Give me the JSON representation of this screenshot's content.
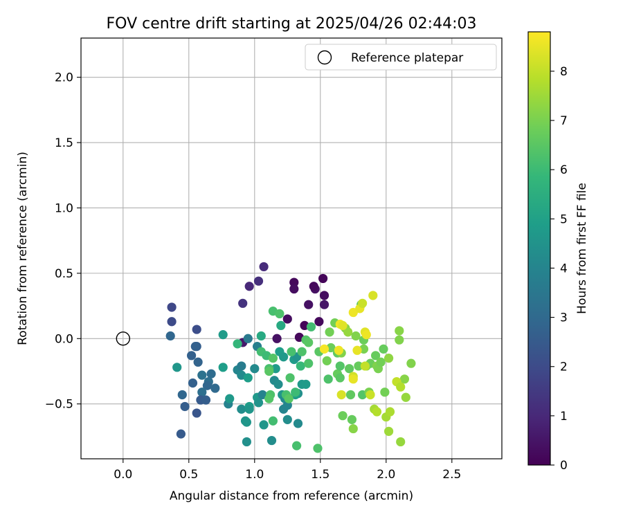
{
  "chart_data": {
    "type": "scatter",
    "title": "FOV centre drift starting at 2025/04/26 02:44:03",
    "xlabel": "Angular distance from reference (arcmin)",
    "ylabel": "Rotation from reference (arcmin)",
    "xlim": [
      -0.32,
      2.88
    ],
    "ylim": [
      -0.92,
      2.3
    ],
    "x_ticks": [
      0.0,
      0.5,
      1.0,
      1.5,
      2.0,
      2.5
    ],
    "x_tick_labels": [
      "0.0",
      "0.5",
      "1.0",
      "1.5",
      "2.0",
      "2.5"
    ],
    "y_ticks": [
      -0.5,
      0.0,
      0.5,
      1.0,
      1.5,
      2.0
    ],
    "y_tick_labels": [
      "−0.5",
      "0.0",
      "0.5",
      "1.0",
      "1.5",
      "2.0"
    ],
    "grid": true,
    "legend": {
      "placement": "top-right",
      "entries": [
        {
          "label": "Reference platepar",
          "marker": "open-circle",
          "color": "#000000"
        }
      ]
    },
    "reference_point": {
      "x": 0.0,
      "y": 0.0
    },
    "colorbar": {
      "label": "Hours from first FF file",
      "colormap": "viridis",
      "range": [
        0,
        8.8
      ],
      "ticks": [
        0,
        1,
        2,
        3,
        4,
        5,
        6,
        7,
        8
      ],
      "tick_labels": [
        "0",
        "1",
        "2",
        "3",
        "4",
        "5",
        "6",
        "7",
        "8"
      ]
    },
    "points": [
      {
        "x": 1.3,
        "y": 0.43,
        "c": 0.2
      },
      {
        "x": 1.52,
        "y": 0.46,
        "c": 0.1
      },
      {
        "x": 1.53,
        "y": 0.33,
        "c": 0.3
      },
      {
        "x": 1.46,
        "y": 0.38,
        "c": 0.4
      },
      {
        "x": 1.45,
        "y": 0.4,
        "c": 0.2
      },
      {
        "x": 1.3,
        "y": 0.38,
        "c": 0.3
      },
      {
        "x": 1.41,
        "y": 0.26,
        "c": 0.4
      },
      {
        "x": 1.53,
        "y": 0.26,
        "c": 0.5
      },
      {
        "x": 1.25,
        "y": 0.15,
        "c": 0.3
      },
      {
        "x": 1.49,
        "y": 0.13,
        "c": 0.2
      },
      {
        "x": 1.38,
        "y": 0.1,
        "c": 0.1
      },
      {
        "x": 1.34,
        "y": 0.01,
        "c": 0.2
      },
      {
        "x": 1.17,
        "y": 0.0,
        "c": 0.4
      },
      {
        "x": 0.91,
        "y": -0.03,
        "c": 0.6
      },
      {
        "x": 1.07,
        "y": 0.55,
        "c": 1.1
      },
      {
        "x": 1.03,
        "y": 0.44,
        "c": 1.2
      },
      {
        "x": 0.96,
        "y": 0.4,
        "c": 1.0
      },
      {
        "x": 0.91,
        "y": 0.27,
        "c": 1.3
      },
      {
        "x": 0.37,
        "y": 0.24,
        "c": 1.9
      },
      {
        "x": 0.37,
        "y": 0.13,
        "c": 2.0
      },
      {
        "x": 0.36,
        "y": 0.02,
        "c": 2.9
      },
      {
        "x": 0.56,
        "y": 0.07,
        "c": 2.1
      },
      {
        "x": 0.56,
        "y": -0.06,
        "c": 2.6
      },
      {
        "x": 0.55,
        "y": -0.06,
        "c": 2.7
      },
      {
        "x": 0.52,
        "y": -0.13,
        "c": 2.7
      },
      {
        "x": 0.57,
        "y": -0.18,
        "c": 2.8
      },
      {
        "x": 0.41,
        "y": -0.22,
        "c": 4.6
      },
      {
        "x": 0.6,
        "y": -0.28,
        "c": 3.3
      },
      {
        "x": 0.67,
        "y": -0.27,
        "c": 3.1
      },
      {
        "x": 0.53,
        "y": -0.34,
        "c": 2.7
      },
      {
        "x": 0.65,
        "y": -0.33,
        "c": 3.2
      },
      {
        "x": 0.64,
        "y": -0.36,
        "c": 2.9
      },
      {
        "x": 0.6,
        "y": -0.41,
        "c": 3.2
      },
      {
        "x": 0.7,
        "y": -0.38,
        "c": 3.0
      },
      {
        "x": 0.45,
        "y": -0.43,
        "c": 2.9
      },
      {
        "x": 0.59,
        "y": -0.47,
        "c": 2.5
      },
      {
        "x": 0.63,
        "y": -0.47,
        "c": 2.6
      },
      {
        "x": 0.47,
        "y": -0.52,
        "c": 2.6
      },
      {
        "x": 0.56,
        "y": -0.57,
        "c": 2.3
      },
      {
        "x": 0.44,
        "y": -0.73,
        "c": 2.5
      },
      {
        "x": 0.76,
        "y": 0.03,
        "c": 4.8
      },
      {
        "x": 0.87,
        "y": -0.04,
        "c": 5.8
      },
      {
        "x": 0.95,
        "y": 0.0,
        "c": 3.6
      },
      {
        "x": 1.02,
        "y": -0.06,
        "c": 3.8
      },
      {
        "x": 1.05,
        "y": 0.02,
        "c": 5.3
      },
      {
        "x": 0.76,
        "y": -0.22,
        "c": 4.9
      },
      {
        "x": 0.87,
        "y": -0.24,
        "c": 4.0
      },
      {
        "x": 0.9,
        "y": -0.21,
        "c": 3.7
      },
      {
        "x": 0.9,
        "y": -0.28,
        "c": 4.2
      },
      {
        "x": 0.95,
        "y": -0.3,
        "c": 4.9
      },
      {
        "x": 1.0,
        "y": -0.23,
        "c": 4.2
      },
      {
        "x": 0.8,
        "y": -0.5,
        "c": 3.9
      },
      {
        "x": 0.81,
        "y": -0.46,
        "c": 4.7
      },
      {
        "x": 0.9,
        "y": -0.54,
        "c": 4.3
      },
      {
        "x": 0.96,
        "y": -0.52,
        "c": 4.9
      },
      {
        "x": 0.96,
        "y": -0.54,
        "c": 4.6
      },
      {
        "x": 0.93,
        "y": -0.63,
        "c": 4.5
      },
      {
        "x": 0.94,
        "y": -0.64,
        "c": 4.6
      },
      {
        "x": 1.02,
        "y": -0.45,
        "c": 4.7
      },
      {
        "x": 1.03,
        "y": -0.49,
        "c": 4.5
      },
      {
        "x": 1.06,
        "y": -0.43,
        "c": 3.9
      },
      {
        "x": 1.07,
        "y": -0.66,
        "c": 4.6
      },
      {
        "x": 0.94,
        "y": -0.79,
        "c": 4.4
      },
      {
        "x": 1.13,
        "y": -0.78,
        "c": 4.3
      },
      {
        "x": 1.15,
        "y": -0.32,
        "c": 4.2
      },
      {
        "x": 1.18,
        "y": -0.35,
        "c": 4.3
      },
      {
        "x": 1.21,
        "y": -0.43,
        "c": 4.6
      },
      {
        "x": 1.23,
        "y": -0.46,
        "c": 4.2
      },
      {
        "x": 1.22,
        "y": -0.54,
        "c": 4.0
      },
      {
        "x": 1.25,
        "y": -0.51,
        "c": 4.0
      },
      {
        "x": 1.25,
        "y": -0.62,
        "c": 4.3
      },
      {
        "x": 1.33,
        "y": -0.42,
        "c": 4.4
      },
      {
        "x": 1.33,
        "y": -0.65,
        "c": 4.2
      },
      {
        "x": 1.36,
        "y": -0.35,
        "c": 4.7
      },
      {
        "x": 1.39,
        "y": -0.35,
        "c": 4.8
      },
      {
        "x": 1.31,
        "y": -0.43,
        "c": 4.9
      },
      {
        "x": 1.16,
        "y": -0.23,
        "c": 4.8
      },
      {
        "x": 1.19,
        "y": -0.1,
        "c": 4.9
      },
      {
        "x": 1.22,
        "y": -0.14,
        "c": 4.7
      },
      {
        "x": 1.3,
        "y": -0.16,
        "c": 4.8
      },
      {
        "x": 1.32,
        "y": -0.14,
        "c": 4.5
      },
      {
        "x": 1.2,
        "y": 0.1,
        "c": 5.3
      },
      {
        "x": 1.14,
        "y": 0.21,
        "c": 6.2
      },
      {
        "x": 1.19,
        "y": 0.19,
        "c": 6.3
      },
      {
        "x": 1.05,
        "y": -0.1,
        "c": 6.1
      },
      {
        "x": 1.09,
        "y": -0.13,
        "c": 6.0
      },
      {
        "x": 1.11,
        "y": -0.23,
        "c": 6.2
      },
      {
        "x": 1.11,
        "y": -0.25,
        "c": 6.5
      },
      {
        "x": 1.14,
        "y": -0.15,
        "c": 6.4
      },
      {
        "x": 1.12,
        "y": -0.43,
        "c": 6.3
      },
      {
        "x": 1.11,
        "y": -0.46,
        "c": 6.4
      },
      {
        "x": 1.14,
        "y": -0.63,
        "c": 6.1
      },
      {
        "x": 1.24,
        "y": -0.43,
        "c": 6.2
      },
      {
        "x": 1.26,
        "y": -0.46,
        "c": 6.5
      },
      {
        "x": 1.27,
        "y": -0.3,
        "c": 6.3
      },
      {
        "x": 1.28,
        "y": -0.1,
        "c": 6.2
      },
      {
        "x": 1.31,
        "y": -0.41,
        "c": 6.0
      },
      {
        "x": 1.32,
        "y": -0.82,
        "c": 6.2
      },
      {
        "x": 1.35,
        "y": -0.21,
        "c": 5.9
      },
      {
        "x": 1.36,
        "y": -0.1,
        "c": 6.3
      },
      {
        "x": 1.39,
        "y": -0.01,
        "c": 6.4
      },
      {
        "x": 1.41,
        "y": -0.03,
        "c": 6.5
      },
      {
        "x": 1.41,
        "y": -0.19,
        "c": 6.3
      },
      {
        "x": 1.43,
        "y": 0.09,
        "c": 6.1
      },
      {
        "x": 1.48,
        "y": -0.84,
        "c": 6.3
      },
      {
        "x": 1.49,
        "y": -0.1,
        "c": 6.5
      },
      {
        "x": 1.55,
        "y": -0.17,
        "c": 6.9
      },
      {
        "x": 1.56,
        "y": -0.31,
        "c": 6.3
      },
      {
        "x": 1.57,
        "y": 0.05,
        "c": 6.9
      },
      {
        "x": 1.61,
        "y": 0.12,
        "c": 6.9
      },
      {
        "x": 1.58,
        "y": -0.07,
        "c": 6.8
      },
      {
        "x": 1.63,
        "y": -0.11,
        "c": 6.6
      },
      {
        "x": 1.63,
        "y": -0.27,
        "c": 6.7
      },
      {
        "x": 1.65,
        "y": -0.21,
        "c": 6.4
      },
      {
        "x": 1.65,
        "y": -0.3,
        "c": 6.5
      },
      {
        "x": 1.66,
        "y": -0.11,
        "c": 7.1
      },
      {
        "x": 1.67,
        "y": -0.59,
        "c": 6.8
      },
      {
        "x": 1.69,
        "y": 0.08,
        "c": 7.2
      },
      {
        "x": 1.71,
        "y": 0.05,
        "c": 7.4
      },
      {
        "x": 1.72,
        "y": -0.23,
        "c": 6.6
      },
      {
        "x": 1.73,
        "y": -0.43,
        "c": 6.6
      },
      {
        "x": 1.74,
        "y": -0.62,
        "c": 6.7
      },
      {
        "x": 1.75,
        "y": -0.69,
        "c": 7.2
      },
      {
        "x": 1.77,
        "y": 0.02,
        "c": 7.1
      },
      {
        "x": 1.79,
        "y": -0.21,
        "c": 6.7
      },
      {
        "x": 1.81,
        "y": 0.26,
        "c": 6.6
      },
      {
        "x": 1.82,
        "y": -0.43,
        "c": 6.4
      },
      {
        "x": 1.83,
        "y": -0.01,
        "c": 6.8
      },
      {
        "x": 1.83,
        "y": -0.08,
        "c": 7.0
      },
      {
        "x": 1.85,
        "y": -0.21,
        "c": 7.3
      },
      {
        "x": 1.87,
        "y": -0.41,
        "c": 7.0
      },
      {
        "x": 1.88,
        "y": -0.19,
        "c": 6.8
      },
      {
        "x": 1.92,
        "y": -0.13,
        "c": 6.7
      },
      {
        "x": 1.93,
        "y": -0.21,
        "c": 7.1
      },
      {
        "x": 1.94,
        "y": -0.23,
        "c": 7.0
      },
      {
        "x": 1.96,
        "y": -0.18,
        "c": 6.9
      },
      {
        "x": 1.98,
        "y": -0.08,
        "c": 6.7
      },
      {
        "x": 1.99,
        "y": -0.41,
        "c": 6.9
      },
      {
        "x": 2.02,
        "y": -0.15,
        "c": 7.3
      },
      {
        "x": 2.1,
        "y": 0.06,
        "c": 7.2
      },
      {
        "x": 2.1,
        "y": -0.01,
        "c": 7.1
      },
      {
        "x": 2.14,
        "y": -0.31,
        "c": 7.2
      },
      {
        "x": 2.15,
        "y": -0.45,
        "c": 7.4
      },
      {
        "x": 2.19,
        "y": -0.19,
        "c": 7.1
      },
      {
        "x": 2.11,
        "y": -0.79,
        "c": 7.4
      },
      {
        "x": 2.02,
        "y": -0.71,
        "c": 7.5
      },
      {
        "x": 2.0,
        "y": -0.6,
        "c": 7.6
      },
      {
        "x": 1.91,
        "y": -0.54,
        "c": 7.6
      },
      {
        "x": 1.93,
        "y": -0.56,
        "c": 7.8
      },
      {
        "x": 2.03,
        "y": -0.56,
        "c": 7.7
      },
      {
        "x": 2.08,
        "y": -0.33,
        "c": 8.0
      },
      {
        "x": 2.11,
        "y": -0.37,
        "c": 7.8
      },
      {
        "x": 1.88,
        "y": -0.43,
        "c": 8.1
      },
      {
        "x": 1.75,
        "y": -0.29,
        "c": 8.2
      },
      {
        "x": 1.75,
        "y": -0.31,
        "c": 8.5
      },
      {
        "x": 1.78,
        "y": -0.09,
        "c": 8.5
      },
      {
        "x": 1.84,
        "y": -0.21,
        "c": 8.0
      },
      {
        "x": 1.66,
        "y": -0.43,
        "c": 8.3
      },
      {
        "x": 1.64,
        "y": -0.09,
        "c": 8.6
      },
      {
        "x": 1.65,
        "y": 0.11,
        "c": 8.6
      },
      {
        "x": 1.67,
        "y": 0.1,
        "c": 8.4
      },
      {
        "x": 1.75,
        "y": 0.2,
        "c": 8.6
      },
      {
        "x": 1.8,
        "y": 0.23,
        "c": 8.5
      },
      {
        "x": 1.82,
        "y": 0.27,
        "c": 8.1
      },
      {
        "x": 1.84,
        "y": 0.05,
        "c": 8.4
      },
      {
        "x": 1.85,
        "y": 0.03,
        "c": 8.6
      },
      {
        "x": 1.9,
        "y": 0.33,
        "c": 8.3
      },
      {
        "x": 1.53,
        "y": -0.08,
        "c": 8.7
      }
    ]
  }
}
